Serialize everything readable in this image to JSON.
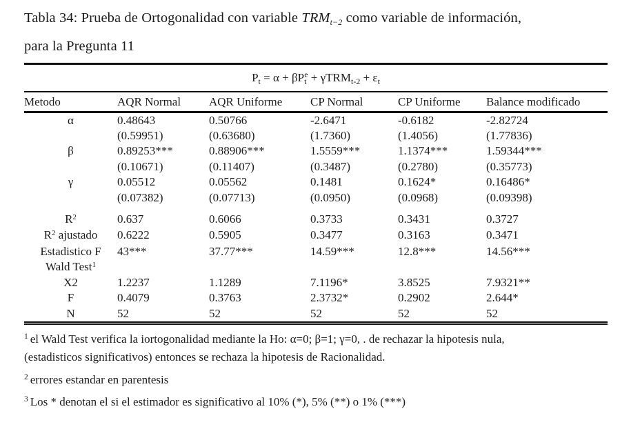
{
  "colors": {
    "background": "#ffffff",
    "text": "#1c1c1c",
    "rule": "#101010"
  },
  "title": {
    "prefix": "Tabla 34: Prueba de Ortogonalidad con variable ",
    "variable": "TRM",
    "variable_sub": "t−2",
    "suffix": " como variable de información,",
    "line2": "para la Pregunta 11"
  },
  "equation": {
    "seg1": "P",
    "sub1": "t",
    "seg2": " = α + βP",
    "sub2": "t",
    "sup2": "e",
    "seg3": " + γTRM",
    "sub3": "t-2",
    "seg4": " + ε",
    "sub4": "t"
  },
  "table": {
    "columns": [
      "Metodo",
      "AQR Normal",
      "AQR Uniforme",
      "CP Normal",
      "CP Uniforme",
      "Balance modificado"
    ],
    "rows": [
      {
        "label": "α",
        "values": [
          "0.48643",
          "0.50766",
          "-2.6471",
          "-0.6182",
          "-2.82724"
        ]
      },
      {
        "label": "",
        "values": [
          "(0.59951)",
          "(0.63680)",
          "(1.7360)",
          "(1.4056)",
          "(1.77836)"
        ]
      },
      {
        "label": "β",
        "values": [
          "0.89253***",
          "0.88906***",
          "1.5559***",
          "1.1374***",
          "1.59344***"
        ]
      },
      {
        "label": "",
        "values": [
          "(0.10671)",
          "(0.11407)",
          "(0.3487)",
          "(0.2780)",
          "(0.35773)"
        ]
      },
      {
        "label": "γ",
        "values": [
          "0.05512",
          "0.05562",
          "0.1481",
          "0.1624*",
          "0.16486*"
        ]
      },
      {
        "label": "",
        "values": [
          "(0.07382)",
          "(0.07713)",
          "(0.0950)",
          "(0.0968)",
          "(0.09398)"
        ]
      },
      {
        "label": "R",
        "label_sup": "2",
        "gap": true,
        "tall": true,
        "values": [
          "0.637",
          "0.6066",
          "0.3733",
          "0.3431",
          "0.3727"
        ]
      },
      {
        "label": "R",
        "label_sup": "2",
        "label_rest": " ajustado",
        "tall": true,
        "values": [
          "0.6222",
          "0.5905",
          "0.3477",
          "0.3163",
          "0.3471"
        ]
      },
      {
        "label": "Estadistico F",
        "values": [
          "43***",
          "37.77***",
          "14.59***",
          "12.8***",
          "14.56***"
        ]
      },
      {
        "label": "Wald Test",
        "label_sup": "1",
        "values": [
          "",
          "",
          "",
          "",
          ""
        ]
      },
      {
        "label": "X2",
        "values": [
          "1.2237",
          "1.1289",
          "7.1196*",
          "3.8525",
          "7.9321**"
        ]
      },
      {
        "label": "F",
        "values": [
          "0.4079",
          "0.3763",
          "2.3732*",
          "0.2902",
          "2.644*"
        ]
      },
      {
        "label": "N",
        "values": [
          "52",
          "52",
          "52",
          "52",
          "52"
        ]
      }
    ]
  },
  "footnotes": [
    {
      "marker": "1",
      "line1": "el Wald Test verifica la iortogonalidad mediante la Ho: α=0;  β=1; γ=0, . de rechazar la hipotesis nula,",
      "line2": "(estadisticos significativos)  entonces se rechaza la hipotesis de Racionalidad."
    },
    {
      "marker": "2",
      "line1": "errores estandar en parentesis"
    },
    {
      "marker": "3",
      "line1": "Los * denotan el si el estimador es significativo al 10% (*), 5% (**) o 1% (***)"
    }
  ]
}
